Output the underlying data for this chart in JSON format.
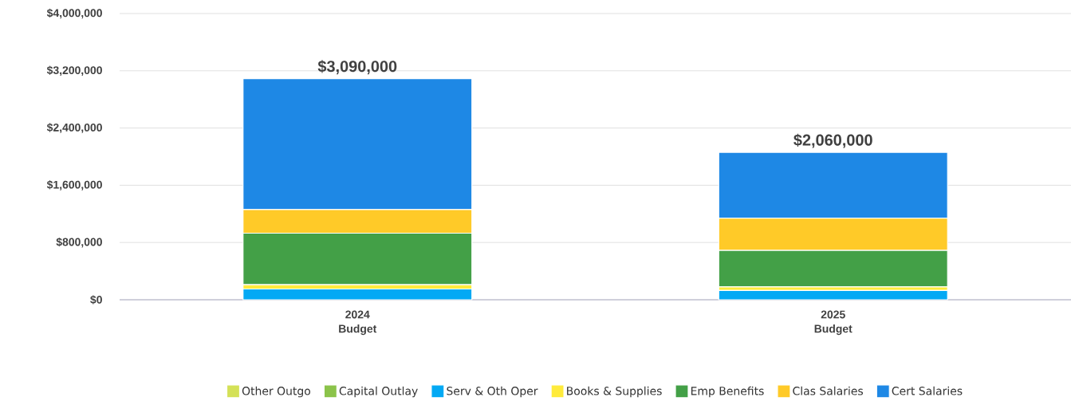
{
  "chart_data": {
    "type": "bar",
    "stacked": true,
    "categories": [
      "2024 Budget",
      "2025 Budget"
    ],
    "series": [
      {
        "name": "Other Outgo",
        "color": "#d4e157",
        "values": [
          0,
          0
        ]
      },
      {
        "name": "Capital Outlay",
        "color": "#8bc34a",
        "values": [
          0,
          0
        ]
      },
      {
        "name": "Serv & Oth Oper",
        "color": "#03a9f4",
        "values": [
          150000,
          130000
        ]
      },
      {
        "name": "Books & Supplies",
        "color": "#ffeb3b",
        "values": [
          60000,
          50000
        ]
      },
      {
        "name": "Emp Benefits",
        "color": "#43a047",
        "values": [
          720000,
          510000
        ]
      },
      {
        "name": "Clas Salaries",
        "color": "#ffca28",
        "values": [
          330000,
          450000
        ]
      },
      {
        "name": "Cert Salaries",
        "color": "#1e88e5",
        "values": [
          1830000,
          920000
        ]
      }
    ],
    "totals": [
      "$3,090,000",
      "$2,060,000"
    ],
    "ylim": [
      0,
      4000000
    ],
    "yticks": [
      {
        "value": 0,
        "label": "$0"
      },
      {
        "value": 800000,
        "label": "$800,000"
      },
      {
        "value": 1600000,
        "label": "$1,600,000"
      },
      {
        "value": 2400000,
        "label": "$2,400,000"
      },
      {
        "value": 3200000,
        "label": "$3,200,000"
      },
      {
        "value": 4000000,
        "label": "$4,000,000"
      }
    ],
    "grid": "y",
    "legend": "bottom"
  }
}
